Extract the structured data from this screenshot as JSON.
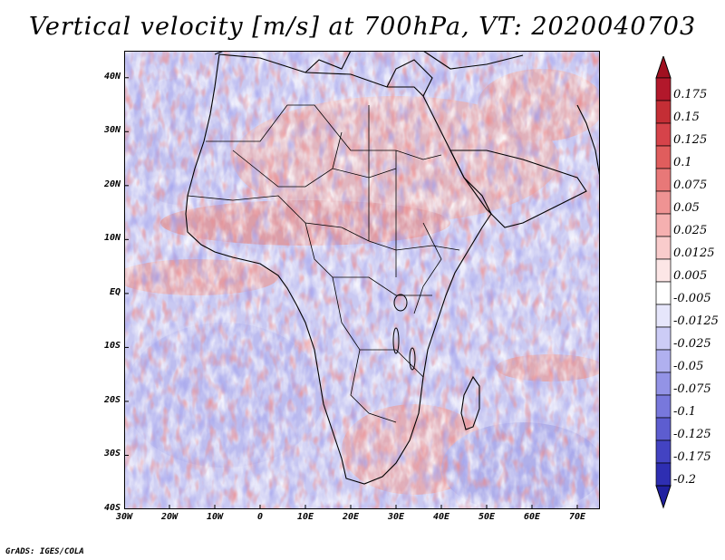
{
  "title": "Vertical velocity [m/s] at 700hPa, VT: 2020040703",
  "footer": "GrADS: IGES/COLA",
  "map": {
    "region": "Africa",
    "lon_range": [
      -30,
      75
    ],
    "lat_range": [
      -40,
      45
    ],
    "lat_ticks": [
      {
        "value": 40,
        "label": "40N"
      },
      {
        "value": 30,
        "label": "30N"
      },
      {
        "value": 20,
        "label": "20N"
      },
      {
        "value": 10,
        "label": "10N"
      },
      {
        "value": 0,
        "label": "EQ"
      },
      {
        "value": -10,
        "label": "10S"
      },
      {
        "value": -20,
        "label": "20S"
      },
      {
        "value": -30,
        "label": "30S"
      },
      {
        "value": -40,
        "label": "40S"
      }
    ],
    "lon_ticks": [
      {
        "value": -30,
        "label": "30W"
      },
      {
        "value": -20,
        "label": "20W"
      },
      {
        "value": -10,
        "label": "10W"
      },
      {
        "value": 0,
        "label": "0"
      },
      {
        "value": 10,
        "label": "10E"
      },
      {
        "value": 20,
        "label": "20E"
      },
      {
        "value": 30,
        "label": "30E"
      },
      {
        "value": 40,
        "label": "40E"
      },
      {
        "value": 50,
        "label": "50E"
      },
      {
        "value": 60,
        "label": "60E"
      },
      {
        "value": 70,
        "label": "70E"
      }
    ]
  },
  "colorbar": {
    "levels": [
      {
        "label": "0.175",
        "color": "#b2182b"
      },
      {
        "label": "0.15",
        "color": "#c42e35"
      },
      {
        "label": "0.125",
        "color": "#d6434a"
      },
      {
        "label": "0.1",
        "color": "#e05d5d"
      },
      {
        "label": "0.075",
        "color": "#e87878"
      },
      {
        "label": "0.05",
        "color": "#ef9393"
      },
      {
        "label": "0.025",
        "color": "#f5b0b0"
      },
      {
        "label": "0.0125",
        "color": "#f9cccc"
      },
      {
        "label": "0.005",
        "color": "#fce6e6"
      },
      {
        "label": "-0.005",
        "color": "#ffffff"
      },
      {
        "label": "-0.0125",
        "color": "#e6e6fb"
      },
      {
        "label": "-0.025",
        "color": "#ccccf6"
      },
      {
        "label": "-0.05",
        "color": "#b0b0ef"
      },
      {
        "label": "-0.075",
        "color": "#9393e6"
      },
      {
        "label": "-0.1",
        "color": "#7878dc"
      },
      {
        "label": "-0.125",
        "color": "#5d5dd0"
      },
      {
        "label": "-0.175",
        "color": "#4343c2"
      },
      {
        "label": "-0.2",
        "color": "#2e2eb2"
      }
    ],
    "top_arrow_color": "#a01020",
    "bottom_arrow_color": "#2020a0"
  }
}
